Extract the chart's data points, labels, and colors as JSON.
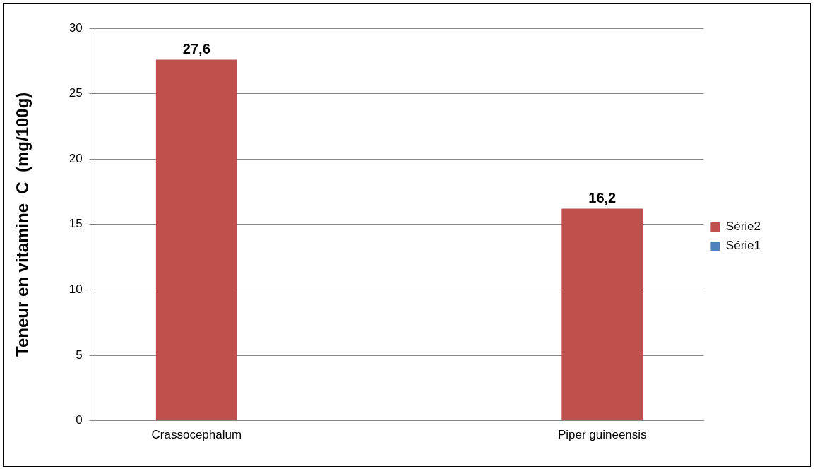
{
  "chart_data": {
    "type": "bar",
    "ylabel": "Teneur en vitamine  C  (mg/100g)",
    "categories": [
      "Crassocephalum",
      null,
      "Piper guineensis"
    ],
    "series": [
      {
        "name": "Série2",
        "color": "#c0504d",
        "values": [
          27.6,
          null,
          16.2
        ],
        "value_labels": [
          "27,6",
          null,
          "16,2"
        ]
      },
      {
        "name": "Série1",
        "color": "#4f81bd",
        "values": [
          null,
          null,
          null
        ]
      }
    ],
    "ylim": [
      0,
      30
    ],
    "yticks": [
      0,
      5,
      10,
      15,
      20,
      25,
      30
    ],
    "grid": "y",
    "legend": "right"
  }
}
